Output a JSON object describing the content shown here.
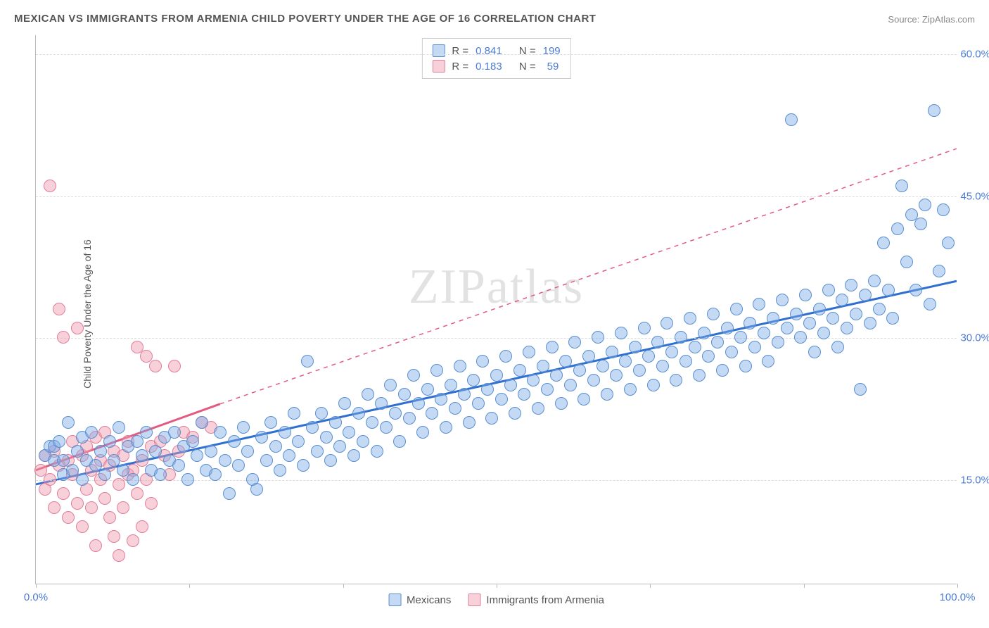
{
  "title": "MEXICAN VS IMMIGRANTS FROM ARMENIA CHILD POVERTY UNDER THE AGE OF 16 CORRELATION CHART",
  "source_label": "Source:",
  "source_name": "ZipAtlas.com",
  "yaxis_label": "Child Poverty Under the Age of 16",
  "watermark": "ZIPatlas",
  "xlim": [
    0,
    100
  ],
  "ylim": [
    4,
    62
  ],
  "xtick_positions": [
    0,
    16.67,
    33.33,
    50,
    66.67,
    83.33,
    100
  ],
  "xtick_labels": {
    "first": "0.0%",
    "last": "100.0%"
  },
  "ygrid": [
    15,
    30,
    45,
    60
  ],
  "ygrid_labels": [
    "15.0%",
    "30.0%",
    "45.0%",
    "60.0%"
  ],
  "grid_color": "#dddddd",
  "axis_color": "#bbbbbb",
  "label_color": "#4a7cd4",
  "series": {
    "blue": {
      "name": "Mexicans",
      "fill": "rgba(125,170,230,0.45)",
      "stroke": "#5a8ed0",
      "marker_radius": 9,
      "line_color": "#2f6fd0",
      "line_width": 3,
      "trend": {
        "x1": 0,
        "y1": 14.5,
        "x2": 100,
        "y2": 36
      },
      "dash_trend": null,
      "R": "0.841",
      "N": "199"
    },
    "pink": {
      "name": "Immigrants from Armenia",
      "fill": "rgba(240,150,170,0.45)",
      "stroke": "#e07f9a",
      "marker_radius": 9,
      "line_color": "#e35a80",
      "line_width": 3,
      "trend": {
        "x1": 0,
        "y1": 16,
        "x2": 20,
        "y2": 23
      },
      "dash_trend": {
        "x1": 20,
        "y1": 23,
        "x2": 100,
        "y2": 50
      },
      "R": "0.183",
      "N": "59"
    }
  },
  "legend": {
    "stats_prefix_R": "R =",
    "stats_prefix_N": "N ="
  },
  "blue_points": [
    [
      1,
      17.5
    ],
    [
      1.5,
      18.5
    ],
    [
      2,
      17
    ],
    [
      2,
      18.5
    ],
    [
      2.5,
      19
    ],
    [
      3,
      17
    ],
    [
      3,
      15.5
    ],
    [
      3.5,
      21
    ],
    [
      4,
      16
    ],
    [
      4.5,
      18
    ],
    [
      5,
      19.5
    ],
    [
      5,
      15
    ],
    [
      5.5,
      17
    ],
    [
      6,
      20
    ],
    [
      6.5,
      16.5
    ],
    [
      7,
      18
    ],
    [
      7.5,
      15.5
    ],
    [
      8,
      19
    ],
    [
      8.5,
      17
    ],
    [
      9,
      20.5
    ],
    [
      9.5,
      16
    ],
    [
      10,
      18.5
    ],
    [
      10.5,
      15
    ],
    [
      11,
      19
    ],
    [
      11.5,
      17.5
    ],
    [
      12,
      20
    ],
    [
      12.5,
      16
    ],
    [
      13,
      18
    ],
    [
      13.5,
      15.5
    ],
    [
      14,
      19.5
    ],
    [
      14.5,
      17
    ],
    [
      15,
      20
    ],
    [
      15.5,
      16.5
    ],
    [
      16,
      18.5
    ],
    [
      16.5,
      15
    ],
    [
      17,
      19
    ],
    [
      17.5,
      17.5
    ],
    [
      18,
      21
    ],
    [
      18.5,
      16
    ],
    [
      19,
      18
    ],
    [
      19.5,
      15.5
    ],
    [
      20,
      20
    ],
    [
      20.5,
      17
    ],
    [
      21,
      13.5
    ],
    [
      21.5,
      19
    ],
    [
      22,
      16.5
    ],
    [
      22.5,
      20.5
    ],
    [
      23,
      18
    ],
    [
      23.5,
      15
    ],
    [
      24,
      14
    ],
    [
      24.5,
      19.5
    ],
    [
      25,
      17
    ],
    [
      25.5,
      21
    ],
    [
      26,
      18.5
    ],
    [
      26.5,
      16
    ],
    [
      27,
      20
    ],
    [
      27.5,
      17.5
    ],
    [
      28,
      22
    ],
    [
      28.5,
      19
    ],
    [
      29,
      16.5
    ],
    [
      29.5,
      27.5
    ],
    [
      30,
      20.5
    ],
    [
      30.5,
      18
    ],
    [
      31,
      22
    ],
    [
      31.5,
      19.5
    ],
    [
      32,
      17
    ],
    [
      32.5,
      21
    ],
    [
      33,
      18.5
    ],
    [
      33.5,
      23
    ],
    [
      34,
      20
    ],
    [
      34.5,
      17.5
    ],
    [
      35,
      22
    ],
    [
      35.5,
      19
    ],
    [
      36,
      24
    ],
    [
      36.5,
      21
    ],
    [
      37,
      18
    ],
    [
      37.5,
      23
    ],
    [
      38,
      20.5
    ],
    [
      38.5,
      25
    ],
    [
      39,
      22
    ],
    [
      39.5,
      19
    ],
    [
      40,
      24
    ],
    [
      40.5,
      21.5
    ],
    [
      41,
      26
    ],
    [
      41.5,
      23
    ],
    [
      42,
      20
    ],
    [
      42.5,
      24.5
    ],
    [
      43,
      22
    ],
    [
      43.5,
      26.5
    ],
    [
      44,
      23.5
    ],
    [
      44.5,
      20.5
    ],
    [
      45,
      25
    ],
    [
      45.5,
      22.5
    ],
    [
      46,
      27
    ],
    [
      46.5,
      24
    ],
    [
      47,
      21
    ],
    [
      47.5,
      25.5
    ],
    [
      48,
      23
    ],
    [
      48.5,
      27.5
    ],
    [
      49,
      24.5
    ],
    [
      49.5,
      21.5
    ],
    [
      50,
      26
    ],
    [
      50.5,
      23.5
    ],
    [
      51,
      28
    ],
    [
      51.5,
      25
    ],
    [
      52,
      22
    ],
    [
      52.5,
      26.5
    ],
    [
      53,
      24
    ],
    [
      53.5,
      28.5
    ],
    [
      54,
      25.5
    ],
    [
      54.5,
      22.5
    ],
    [
      55,
      27
    ],
    [
      55.5,
      24.5
    ],
    [
      56,
      29
    ],
    [
      56.5,
      26
    ],
    [
      57,
      23
    ],
    [
      57.5,
      27.5
    ],
    [
      58,
      25
    ],
    [
      58.5,
      29.5
    ],
    [
      59,
      26.5
    ],
    [
      59.5,
      23.5
    ],
    [
      60,
      28
    ],
    [
      60.5,
      25.5
    ],
    [
      61,
      30
    ],
    [
      61.5,
      27
    ],
    [
      62,
      24
    ],
    [
      62.5,
      28.5
    ],
    [
      63,
      26
    ],
    [
      63.5,
      30.5
    ],
    [
      64,
      27.5
    ],
    [
      64.5,
      24.5
    ],
    [
      65,
      29
    ],
    [
      65.5,
      26.5
    ],
    [
      66,
      31
    ],
    [
      66.5,
      28
    ],
    [
      67,
      25
    ],
    [
      67.5,
      29.5
    ],
    [
      68,
      27
    ],
    [
      68.5,
      31.5
    ],
    [
      69,
      28.5
    ],
    [
      69.5,
      25.5
    ],
    [
      70,
      30
    ],
    [
      70.5,
      27.5
    ],
    [
      71,
      32
    ],
    [
      71.5,
      29
    ],
    [
      72,
      26
    ],
    [
      72.5,
      30.5
    ],
    [
      73,
      28
    ],
    [
      73.5,
      32.5
    ],
    [
      74,
      29.5
    ],
    [
      74.5,
      26.5
    ],
    [
      75,
      31
    ],
    [
      75.5,
      28.5
    ],
    [
      76,
      33
    ],
    [
      76.5,
      30
    ],
    [
      77,
      27
    ],
    [
      77.5,
      31.5
    ],
    [
      78,
      29
    ],
    [
      78.5,
      33.5
    ],
    [
      79,
      30.5
    ],
    [
      79.5,
      27.5
    ],
    [
      80,
      32
    ],
    [
      80.5,
      29.5
    ],
    [
      81,
      34
    ],
    [
      81.5,
      31
    ],
    [
      82,
      53
    ],
    [
      82.5,
      32.5
    ],
    [
      83,
      30
    ],
    [
      83.5,
      34.5
    ],
    [
      84,
      31.5
    ],
    [
      84.5,
      28.5
    ],
    [
      85,
      33
    ],
    [
      85.5,
      30.5
    ],
    [
      86,
      35
    ],
    [
      86.5,
      32
    ],
    [
      87,
      29
    ],
    [
      87.5,
      34
    ],
    [
      88,
      31
    ],
    [
      88.5,
      35.5
    ],
    [
      89,
      32.5
    ],
    [
      89.5,
      24.5
    ],
    [
      90,
      34.5
    ],
    [
      90.5,
      31.5
    ],
    [
      91,
      36
    ],
    [
      91.5,
      33
    ],
    [
      92,
      40
    ],
    [
      92.5,
      35
    ],
    [
      93,
      32
    ],
    [
      93.5,
      41.5
    ],
    [
      94,
      46
    ],
    [
      94.5,
      38
    ],
    [
      95,
      43
    ],
    [
      95.5,
      35
    ],
    [
      96,
      42
    ],
    [
      96.5,
      44
    ],
    [
      97,
      33.5
    ],
    [
      97.5,
      54
    ],
    [
      98,
      37
    ],
    [
      98.5,
      43.5
    ],
    [
      99,
      40
    ]
  ],
  "pink_points": [
    [
      0.5,
      16
    ],
    [
      1,
      14
    ],
    [
      1,
      17.5
    ],
    [
      1.5,
      15
    ],
    [
      1.5,
      46
    ],
    [
      2,
      12
    ],
    [
      2,
      18
    ],
    [
      2.5,
      16.5
    ],
    [
      2.5,
      33
    ],
    [
      3,
      13.5
    ],
    [
      3,
      30
    ],
    [
      3.5,
      17
    ],
    [
      3.5,
      11
    ],
    [
      4,
      15.5
    ],
    [
      4,
      19
    ],
    [
      4.5,
      12.5
    ],
    [
      4.5,
      31
    ],
    [
      5,
      17.5
    ],
    [
      5,
      10
    ],
    [
      5.5,
      14
    ],
    [
      5.5,
      18.5
    ],
    [
      6,
      16
    ],
    [
      6,
      12
    ],
    [
      6.5,
      19.5
    ],
    [
      6.5,
      8
    ],
    [
      7,
      15
    ],
    [
      7,
      17
    ],
    [
      7.5,
      13
    ],
    [
      7.5,
      20
    ],
    [
      8,
      11
    ],
    [
      8,
      16.5
    ],
    [
      8.5,
      9
    ],
    [
      8.5,
      18
    ],
    [
      9,
      14.5
    ],
    [
      9,
      7
    ],
    [
      9.5,
      17.5
    ],
    [
      9.5,
      12
    ],
    [
      10,
      15.5
    ],
    [
      10,
      19
    ],
    [
      10.5,
      8.5
    ],
    [
      10.5,
      16
    ],
    [
      11,
      13.5
    ],
    [
      11,
      29
    ],
    [
      11.5,
      17
    ],
    [
      11.5,
      10
    ],
    [
      12,
      15
    ],
    [
      12,
      28
    ],
    [
      12.5,
      18.5
    ],
    [
      12.5,
      12.5
    ],
    [
      13,
      27
    ],
    [
      13.5,
      19
    ],
    [
      14,
      17.5
    ],
    [
      14.5,
      15.5
    ],
    [
      15,
      27
    ],
    [
      15.5,
      18
    ],
    [
      16,
      20
    ],
    [
      17,
      19.5
    ],
    [
      18,
      21
    ],
    [
      19,
      20.5
    ]
  ]
}
